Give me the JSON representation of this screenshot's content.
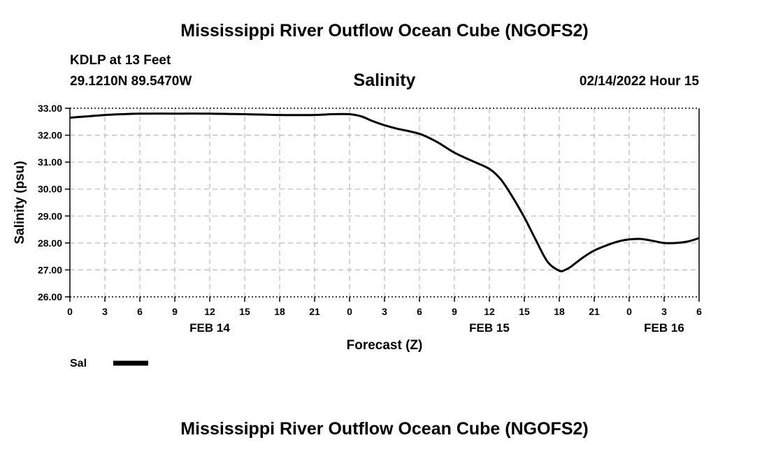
{
  "header": {
    "title": "Mississippi River Outflow Ocean Cube (NGOFS2)",
    "station": "KDLP at 13 Feet",
    "coords": "29.1210N  89.5470W",
    "date": "02/14/2022 Hour 15"
  },
  "footer": {
    "title": "Mississippi River Outflow Ocean Cube (NGOFS2)"
  },
  "chart_data": {
    "type": "line",
    "title": "Salinity",
    "xlabel": "Forecast (Z)",
    "ylabel": "Salinity (psu)",
    "ylim": [
      26.0,
      33.0
    ],
    "xlim": [
      0,
      54
    ],
    "y_ticks": [
      "26.00",
      "27.00",
      "28.00",
      "29.00",
      "30.00",
      "31.00",
      "32.00",
      "33.00"
    ],
    "x_tick_labels": [
      "0",
      "3",
      "6",
      "9",
      "12",
      "15",
      "18",
      "21",
      "0",
      "3",
      "6",
      "9",
      "12",
      "15",
      "18",
      "21",
      "0",
      "3",
      "6"
    ],
    "date_labels": [
      {
        "label": "FEB 14",
        "hour": 12
      },
      {
        "label": "FEB 15",
        "hour": 36
      },
      {
        "label": "FEB 16",
        "hour": 51
      }
    ],
    "grid": true,
    "legend": {
      "position": "bottom-left",
      "label": "Sal"
    },
    "series": [
      {
        "name": "Sal",
        "color": "#000000",
        "x": [
          0,
          1.5,
          3,
          4.5,
          6,
          9,
          12,
          15,
          18,
          21,
          22.5,
          24,
          25,
          26,
          27,
          28,
          30,
          31.5,
          33,
          34.5,
          36,
          37,
          38,
          39,
          40,
          41,
          42,
          42.5,
          43,
          44,
          45,
          46,
          47,
          48,
          49,
          50,
          51,
          52,
          53,
          54
        ],
        "values": [
          32.65,
          32.7,
          32.75,
          32.78,
          32.8,
          32.8,
          32.8,
          32.78,
          32.75,
          32.75,
          32.78,
          32.78,
          32.7,
          32.52,
          32.37,
          32.25,
          32.05,
          31.75,
          31.35,
          31.05,
          30.75,
          30.35,
          29.7,
          28.95,
          28.1,
          27.3,
          26.97,
          27.0,
          27.12,
          27.45,
          27.72,
          27.9,
          28.05,
          28.13,
          28.15,
          28.08,
          28.0,
          28.0,
          28.05,
          28.18
        ]
      }
    ]
  }
}
